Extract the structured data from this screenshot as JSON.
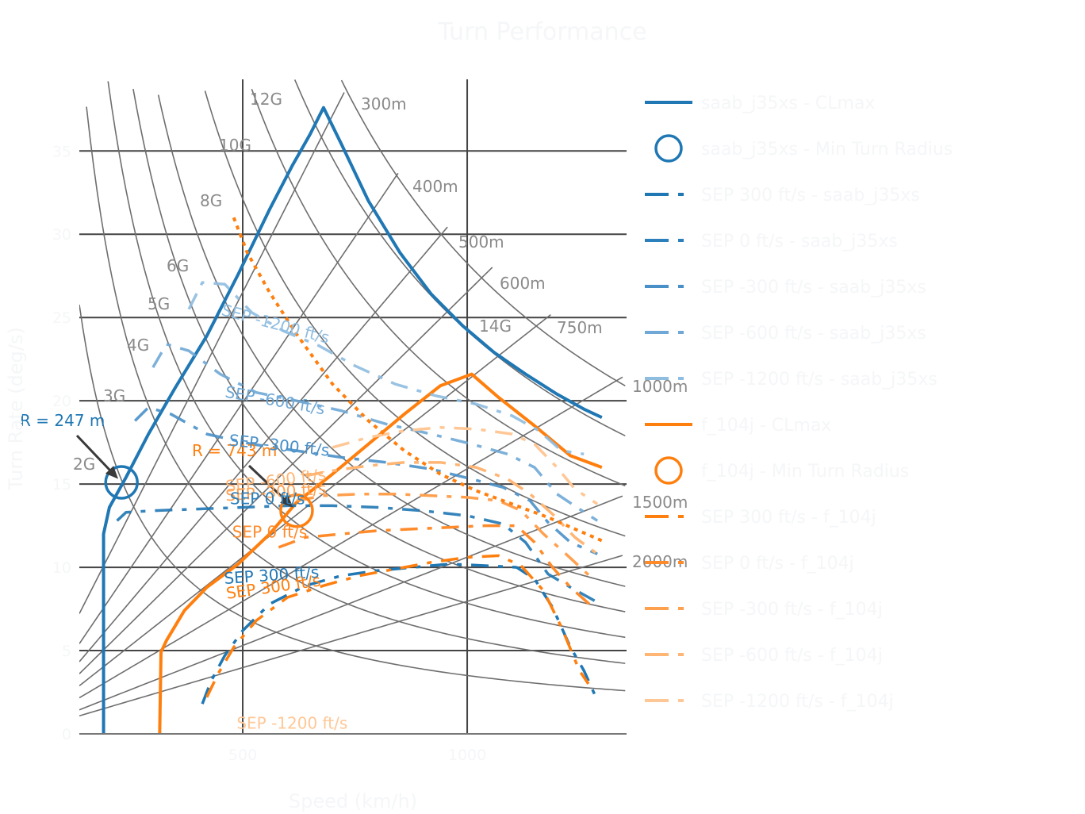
{
  "chart_data": {
    "type": "line",
    "title": "Turn Performance",
    "xlabel": "Speed (km/h)",
    "ylabel": "Turn Rate (deg/s)",
    "xlim": [
      136,
      1355
    ],
    "ylim": [
      0,
      39.3
    ],
    "x_ticks": [
      500,
      1000
    ],
    "y_ticks": [
      0,
      5,
      10,
      15,
      20,
      25,
      30,
      35
    ],
    "grid": true,
    "legend_position": "right",
    "colors": {
      "blue": "#1f77b4",
      "orange": "#ff7f0e",
      "grid": "#444444",
      "guide": "#6e6e6e",
      "arrow": "#3a3a3a"
    },
    "g_lines": {
      "labels": [
        "2G",
        "3G",
        "4G",
        "5G",
        "6G",
        "8G",
        "10G",
        "12G",
        "14G"
      ],
      "values": [
        2,
        3,
        4,
        5,
        6,
        8,
        10,
        12,
        14
      ]
    },
    "radius_lines": {
      "labels": [
        "300m",
        "400m",
        "500m",
        "600m",
        "750m",
        "1000m",
        "1500m",
        "2000m"
      ],
      "values": [
        300,
        400,
        500,
        600,
        750,
        1000,
        1500,
        2000
      ]
    },
    "series": [
      {
        "name": "saab_j35xs - CLmax",
        "color": "#1f77b4",
        "style": "solid",
        "width": 4,
        "opacity": 1,
        "x": [
          190,
          190,
          203,
          240,
          290,
          350,
          420,
          490,
          560,
          610,
          650,
          680,
          720,
          780,
          850,
          920,
          990,
          1060,
          1130,
          1200,
          1260,
          1300
        ],
        "y": [
          0,
          12.0,
          13.6,
          15.4,
          18.0,
          20.8,
          23.9,
          27.6,
          31.5,
          34.1,
          36.0,
          37.6,
          35.4,
          32.0,
          28.9,
          26.4,
          24.5,
          22.9,
          21.6,
          20.4,
          19.5,
          19.0
        ]
      },
      {
        "name": "f_104j - CLmax",
        "color": "#ff7f0e",
        "style": "solid",
        "width": 4,
        "opacity": 1,
        "x": [
          315,
          318,
          330,
          370,
          420,
          490,
          560,
          620,
          700,
          780,
          860,
          940,
          1010,
          1070,
          1150,
          1230,
          1300
        ],
        "y": [
          0,
          4.9,
          5.6,
          7.4,
          8.8,
          10.2,
          12.0,
          13.9,
          15.6,
          17.4,
          19.2,
          20.9,
          21.6,
          20.2,
          18.5,
          16.7,
          16.0
        ]
      },
      {
        "name": "SEP 300 ft/s - saab_j35xs",
        "color": "#1f77b4",
        "style": "dashdot",
        "width": 3.5,
        "opacity": 1,
        "x": [
          410,
          430,
          460,
          500,
          560,
          640,
          720,
          800,
          880,
          960,
          1040,
          1110,
          1150,
          1190,
          1230,
          1260,
          1290
        ],
        "y": [
          1.8,
          3.2,
          4.7,
          6.2,
          7.8,
          8.9,
          9.5,
          9.8,
          10.0,
          10.2,
          10.1,
          10.0,
          9.3,
          7.6,
          5.2,
          3.8,
          2.0
        ]
      },
      {
        "name": "SEP 0 ft/s - saab_j35xs",
        "color": "#1f77b4",
        "style": "dashdot",
        "width": 3.5,
        "opacity": 0.9,
        "x": [
          220,
          240,
          300,
          400,
          500,
          600,
          700,
          800,
          900,
          1000,
          1080,
          1130,
          1180,
          1230,
          1290
        ],
        "y": [
          12.8,
          13.3,
          13.4,
          13.5,
          13.6,
          13.7,
          13.7,
          13.6,
          13.4,
          13.1,
          12.6,
          11.5,
          9.6,
          8.8,
          7.9
        ]
      },
      {
        "name": "SEP -300 ft/s - saab_j35xs",
        "color": "#4a90c8",
        "style": "dashdot",
        "width": 3.5,
        "opacity": 0.9,
        "x": [
          260,
          290,
          340,
          420,
          520,
          620,
          720,
          820,
          920,
          1010,
          1080,
          1140,
          1180,
          1230,
          1290
        ],
        "y": [
          18.8,
          19.6,
          19.2,
          18.0,
          17.4,
          17.0,
          16.6,
          16.3,
          15.9,
          15.3,
          14.8,
          14.0,
          12.7,
          11.5,
          10.8
        ]
      },
      {
        "name": "SEP -600 ft/s - saab_j35xs",
        "color": "#6fa8d6",
        "style": "dashdot",
        "width": 3.5,
        "opacity": 0.9,
        "x": [
          300,
          330,
          380,
          450,
          530,
          620,
          720,
          820,
          920,
          1010,
          1090,
          1150,
          1200,
          1250,
          1290
        ],
        "y": [
          22.0,
          23.4,
          23.0,
          21.6,
          20.5,
          20.0,
          19.4,
          18.6,
          18.0,
          17.4,
          16.8,
          16.0,
          14.4,
          13.5,
          12.8
        ]
      },
      {
        "name": "SEP -1200 ft/s - saab_j35xs",
        "color": "#8fbde0",
        "style": "dashdot",
        "width": 3.5,
        "opacity": 0.9,
        "x": [
          380,
          410,
          460,
          520,
          590,
          670,
          750,
          840,
          930,
          1020,
          1100,
          1160,
          1210,
          1260
        ],
        "y": [
          25.5,
          27.1,
          27.0,
          25.3,
          24.2,
          23.3,
          22.1,
          21.0,
          20.3,
          19.8,
          19.1,
          18.2,
          17.0,
          16.8
        ]
      },
      {
        "name": "SEP 300 ft/s - f_104j",
        "color": "#ff7f0e",
        "style": "dashdot",
        "width": 3.5,
        "opacity": 1,
        "x": [
          420,
          445,
          480,
          530,
          600,
          680,
          760,
          840,
          920,
          1000,
          1070,
          1120,
          1170,
          1210,
          1250,
          1270
        ],
        "y": [
          2.2,
          3.6,
          5.2,
          6.8,
          8.2,
          8.9,
          9.5,
          9.9,
          10.3,
          10.6,
          10.7,
          10.1,
          8.6,
          6.4,
          3.8,
          3.0
        ]
      },
      {
        "name": "SEP 0 ft/s - f_104j",
        "color": "#ff8a2a",
        "style": "dashdot",
        "width": 3.5,
        "opacity": 1,
        "x": [
          580,
          640,
          720,
          800,
          880,
          960,
          1040,
          1110,
          1150,
          1190,
          1230,
          1280
        ],
        "y": [
          11.2,
          11.8,
          12.0,
          12.2,
          12.3,
          12.4,
          12.5,
          12.5,
          11.5,
          10.0,
          8.8,
          7.6
        ]
      },
      {
        "name": "SEP -300 ft/s - f_104j",
        "color": "#ffa04f",
        "style": "dashdot",
        "width": 3.5,
        "opacity": 1,
        "x": [
          620,
          680,
          760,
          840,
          920,
          1000,
          1070,
          1120,
          1170,
          1220,
          1280
        ],
        "y": [
          14.0,
          14.3,
          14.4,
          14.4,
          14.3,
          14.2,
          14.0,
          13.4,
          12.0,
          10.8,
          9.3
        ]
      },
      {
        "name": "SEP -600 ft/s - f_104j",
        "color": "#ffb574",
        "style": "dashdot",
        "width": 3.5,
        "opacity": 1,
        "x": [
          640,
          700,
          780,
          860,
          940,
          1020,
          1090,
          1140,
          1190,
          1240,
          1290
        ],
        "y": [
          15.5,
          15.8,
          16.1,
          16.3,
          16.3,
          16.0,
          15.3,
          14.4,
          13.2,
          11.8,
          10.8
        ]
      },
      {
        "name": "SEP -1200 ft/s - f_104j",
        "color": "#ffc796",
        "style": "dashdot",
        "width": 3.5,
        "opacity": 1,
        "x": [
          700,
          780,
          860,
          940,
          1020,
          1100,
          1150,
          1200,
          1240,
          1290
        ],
        "y": [
          17.2,
          17.8,
          18.2,
          18.4,
          18.3,
          18.0,
          17.4,
          16.0,
          14.7,
          13.8
        ]
      },
      {
        "name": "SEP 300 ft/s - f_104j (dotted)",
        "color": "#ff7f0e",
        "style": "dot",
        "width": 4,
        "opacity": 1,
        "legend": false,
        "x": [
          480,
          510,
          560,
          620,
          700,
          780,
          860,
          940,
          1020,
          1100,
          1180,
          1240,
          1300
        ],
        "y": [
          31.0,
          28.9,
          26.5,
          24.0,
          21.0,
          18.8,
          17.0,
          15.6,
          14.6,
          13.8,
          13.0,
          12.3,
          11.6
        ]
      }
    ],
    "legend_items": [
      {
        "label": "saab_j35xs - CLmax",
        "color": "#1f77b4",
        "kind": "solid"
      },
      {
        "label": "saab_j35xs - Min Turn Radius",
        "color": "#1f77b4",
        "kind": "circle"
      },
      {
        "label": "SEP 300 ft/s - saab_j35xs",
        "color": "#1f77b4",
        "kind": "dashdot"
      },
      {
        "label": "SEP 0 ft/s - saab_j35xs",
        "color": "#2b7fbb",
        "kind": "dashdot"
      },
      {
        "label": "SEP -300 ft/s - saab_j35xs",
        "color": "#4a90c8",
        "kind": "dashdot"
      },
      {
        "label": "SEP -600 ft/s - saab_j35xs",
        "color": "#6fa8d6",
        "kind": "dashdot"
      },
      {
        "label": "SEP -1200 ft/s - saab_j35xs",
        "color": "#8fbde0",
        "kind": "dashdot"
      },
      {
        "label": "f_104j - CLmax",
        "color": "#ff7f0e",
        "kind": "solid"
      },
      {
        "label": "f_104j - Min Turn Radius",
        "color": "#ff7f0e",
        "kind": "circle"
      },
      {
        "label": "SEP 300 ft/s - f_104j",
        "color": "#ff7f0e",
        "kind": "dashdot"
      },
      {
        "label": "SEP 0 ft/s - f_104j",
        "color": "#ff8a2a",
        "kind": "dashdot"
      },
      {
        "label": "SEP -300 ft/s - f_104j",
        "color": "#ffa04f",
        "kind": "dashdot"
      },
      {
        "label": "SEP -600 ft/s - f_104j",
        "color": "#ffb574",
        "kind": "dashdot"
      },
      {
        "label": "SEP -1200 ft/s - f_104j",
        "color": "#ffc796",
        "kind": "dashdot"
      }
    ],
    "min_radius_markers": [
      {
        "aircraft": "saab_j35xs",
        "speed": 230,
        "turn_rate": 15.1,
        "color": "#1f77b4",
        "label": "R = 247 m"
      },
      {
        "aircraft": "f_104j",
        "speed": 620,
        "turn_rate": 13.4,
        "color": "#ff7f0e",
        "label": "R = 743 m"
      }
    ],
    "sep_annotations": [
      {
        "text": "SEP -1200 ft/s",
        "color": "#8fbde0",
        "x": 570,
        "y": 24.3,
        "angle": 15
      },
      {
        "text": "SEP -600 ft/s",
        "color": "#6fa8d6",
        "x": 570,
        "y": 19.7,
        "angle": 10
      },
      {
        "text": "SEP -300 ft/s",
        "color": "#4a90c8",
        "x": 580,
        "y": 17.0,
        "angle": 6
      },
      {
        "text": "SEP -600 ft/s",
        "color": "#ffb574",
        "x": 575,
        "y": 14.9,
        "angle": -7
      },
      {
        "text": "SEP -300 ft/s",
        "color": "#ffa04f",
        "x": 575,
        "y": 14.2,
        "angle": -4
      },
      {
        "text": "SEP 0 ft/s",
        "color": "#2b7fbb",
        "x": 555,
        "y": 13.8,
        "angle": 0
      },
      {
        "text": "SEP 0 ft/s",
        "color": "#ff8a2a",
        "x": 560,
        "y": 11.8,
        "angle": 0
      },
      {
        "text": "SEP 300 ft/s",
        "color": "#1f77b4",
        "x": 565,
        "y": 9.2,
        "angle": -4
      },
      {
        "text": "SEP 300 ft/s",
        "color": "#ff7f0e",
        "x": 570,
        "y": 8.5,
        "angle": -8
      },
      {
        "text": "SEP -1200 ft/s",
        "color": "#ffc796",
        "x": 610,
        "y": 0.3,
        "angle": 0
      }
    ]
  }
}
